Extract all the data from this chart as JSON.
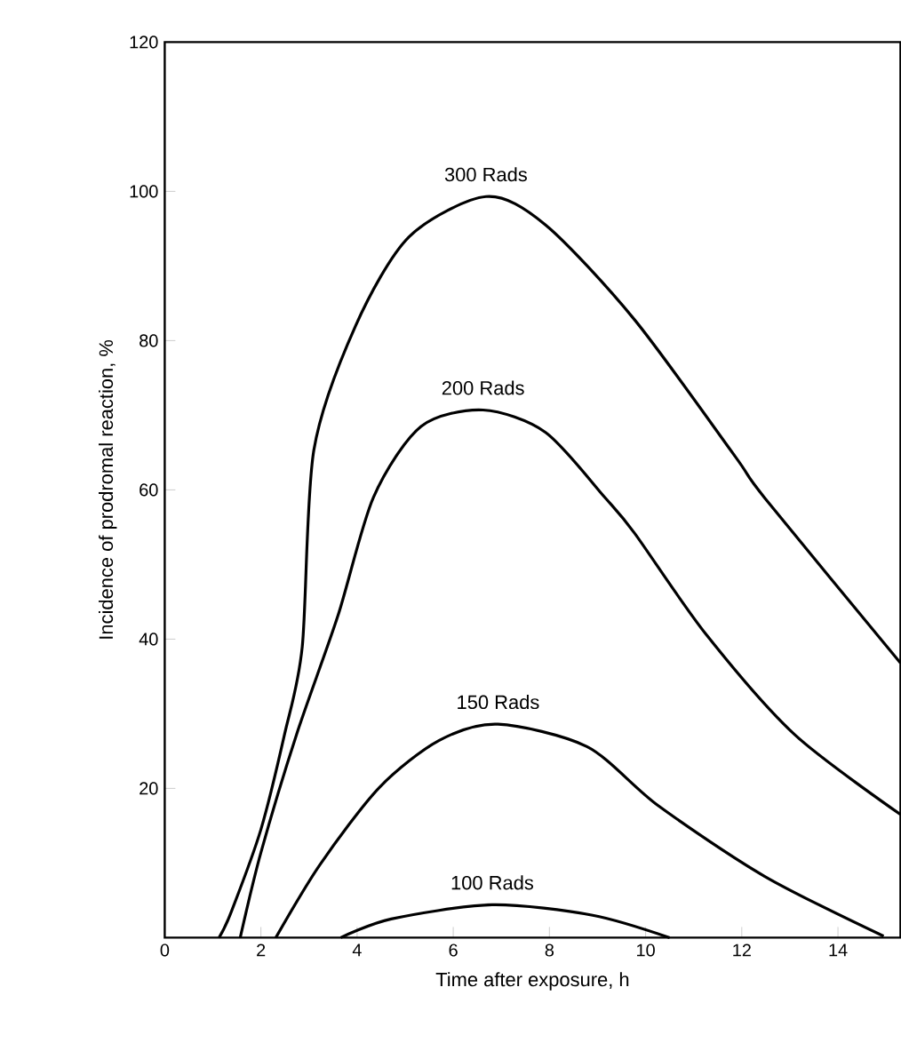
{
  "chart_data": {
    "type": "line",
    "xlabel": "Time after exposure,   h",
    "ylabel": "Incidence of prodromal reaction,   %",
    "xlim": [
      0,
      15.3
    ],
    "ylim": [
      0,
      120
    ],
    "xticks": [
      0,
      2,
      4,
      6,
      8,
      10,
      12,
      14
    ],
    "yticks": [
      20,
      40,
      60,
      80,
      100,
      120
    ],
    "grid": false,
    "legend": false,
    "marker": "none",
    "line_style": "solid",
    "series": [
      {
        "name": "300 Rads",
        "color": "#000000",
        "x": [
          1.13,
          1.38,
          2.0,
          2.49,
          2.86,
          3.1,
          3.97,
          5.08,
          6.68,
          7.92,
          9.77,
          11.86,
          12.48,
          15.3
        ],
        "values": [
          0,
          3.4,
          14.5,
          27.2,
          39,
          65.3,
          82,
          93.9,
          99.3,
          95.5,
          82.8,
          64.5,
          58.9,
          36.8
        ]
      },
      {
        "name": "200 Rads",
        "color": "#000000",
        "x": [
          1.57,
          2.0,
          2.74,
          3.6,
          4.34,
          5.33,
          6.62,
          7.92,
          9.15,
          9.77,
          11.25,
          13.1,
          15.3
        ],
        "values": [
          0,
          11.4,
          27.2,
          43.1,
          59,
          68.5,
          70.7,
          67.7,
          59,
          54.2,
          40.7,
          27.2,
          16.5
        ]
      },
      {
        "name": "150 Rads",
        "color": "#000000",
        "x": [
          2.31,
          3.23,
          4.46,
          5.7,
          6.93,
          8.78,
          10.26,
          12.48,
          14.95
        ],
        "values": [
          0,
          9.8,
          20.1,
          26.4,
          28.6,
          25.6,
          17.7,
          8.2,
          0.2
        ]
      },
      {
        "name": "100 Rads",
        "color": "#000000",
        "x": [
          3.66,
          4.71,
          6.81,
          8.9,
          10.5
        ],
        "values": [
          0,
          2.5,
          4.4,
          3.0,
          0
        ]
      }
    ]
  }
}
